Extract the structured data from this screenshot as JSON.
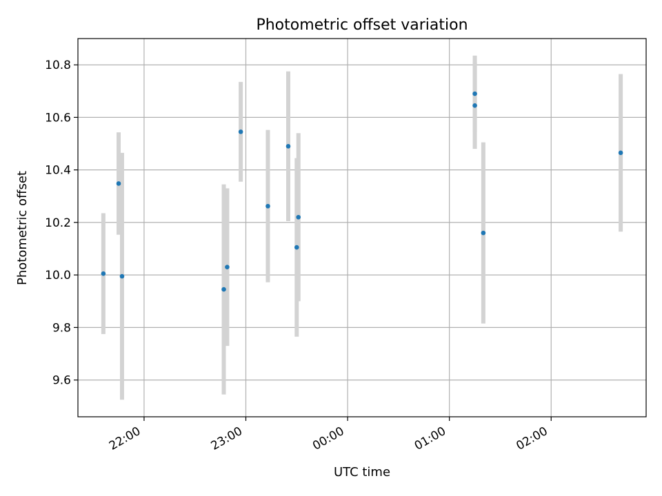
{
  "chart_data": {
    "type": "scatter",
    "title": "Photometric offset variation",
    "xlabel": "UTC time",
    "ylabel": "Photometric offset",
    "x_axis": "time",
    "x_ticks": [
      "22:00",
      "23:00",
      "00:00",
      "01:00",
      "02:00"
    ],
    "y_ticks": [
      "9.6",
      "9.8",
      "10.0",
      "10.2",
      "10.4",
      "10.6",
      "10.8"
    ],
    "xlim": [
      "21:21",
      "02:56"
    ],
    "ylim": [
      9.46,
      10.9
    ],
    "grid": true,
    "series": [
      {
        "marker_color": "#1f77b4",
        "errorbar_color": "#d3d3d3",
        "points": [
          {
            "x": "21:36",
            "y": 10.005,
            "err": 0.23
          },
          {
            "x": "21:45",
            "y": 10.348,
            "err": 0.195
          },
          {
            "x": "21:47",
            "y": 9.995,
            "err": 0.47
          },
          {
            "x": "22:47",
            "y": 9.945,
            "err": 0.4
          },
          {
            "x": "22:49",
            "y": 10.03,
            "err": 0.3
          },
          {
            "x": "22:57",
            "y": 10.545,
            "err": 0.19
          },
          {
            "x": "23:13",
            "y": 10.262,
            "err": 0.29
          },
          {
            "x": "23:25",
            "y": 10.49,
            "err": 0.285
          },
          {
            "x": "23:30",
            "y": 10.105,
            "err": 0.34
          },
          {
            "x": "23:31",
            "y": 10.22,
            "err": 0.32
          },
          {
            "x": "01:15",
            "y": 10.645,
            "err": 0.165
          },
          {
            "x": "01:15",
            "y": 10.69,
            "err": 0.145
          },
          {
            "x": "01:20",
            "y": 10.16,
            "err": 0.345
          },
          {
            "x": "02:41",
            "y": 10.465,
            "err": 0.3
          }
        ]
      }
    ]
  }
}
